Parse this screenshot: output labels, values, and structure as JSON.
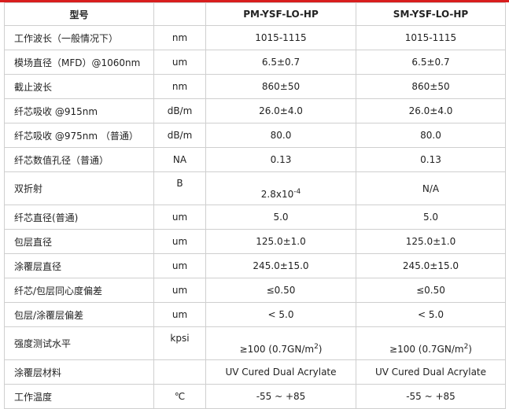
{
  "header": {
    "param": "型号",
    "unit": "",
    "model_a": "PM-YSF-LO-HP",
    "model_b": "SM-YSF-LO-HP"
  },
  "rows": [
    {
      "param": "工作波长（一般情况下）",
      "unit": "nm",
      "a": "1015-1115",
      "b": "1015-1115"
    },
    {
      "param": "模场直径（MFD）@1060nm",
      "unit": "um",
      "a": "6.5±0.7",
      "b": "6.5±0.7"
    },
    {
      "param": "截止波长",
      "unit": "nm",
      "a": "860±50",
      "b": "860±50"
    },
    {
      "param": "纤芯吸收 @915nm",
      "unit": "dB/m",
      "a": "26.0±4.0",
      "b": "26.0±4.0"
    },
    {
      "param": "纤芯吸收 @975nm （普通）",
      "unit": "dB/m",
      "a": "80.0",
      "b": "80.0"
    },
    {
      "param": "纤芯数值孔径（普通）",
      "unit": "NA",
      "a": "0.13",
      "b": "0.13"
    },
    {
      "param": "双折射",
      "unit": "B",
      "a_base": "2.8x10",
      "a_sup": "-4",
      "b": "N/A"
    },
    {
      "param": "纤芯直径(普通)",
      "unit": "um",
      "a": "5.0",
      "b": "5.0"
    },
    {
      "param": "包层直径",
      "unit": "um",
      "a": "125.0±1.0",
      "b": "125.0±1.0"
    },
    {
      "param": "涂覆层直径",
      "unit": "um",
      "a": "245.0±15.0",
      "b": "245.0±15.0"
    },
    {
      "param": "纤芯/包层同心度偏差",
      "unit": "um",
      "a": "≤0.50",
      "b": "≤0.50"
    },
    {
      "param": "包层/涂覆层偏差",
      "unit": "um",
      "a": "< 5.0",
      "b": "< 5.0"
    },
    {
      "param": "强度测试水平",
      "unit": "kpsi",
      "a_base": "≥100 (0.7GN/m",
      "a_sup": "2",
      "a_tail": ")",
      "b_base": "≥100 (0.7GN/m",
      "b_sup": "2",
      "b_tail": ")"
    },
    {
      "param": "涂覆层材料",
      "unit": "",
      "a": "UV Cured Dual Acrylate",
      "b": "UV Cured Dual Acrylate"
    },
    {
      "param": "工作温度",
      "unit": "℃",
      "a": "-55 ~ +85",
      "b": "-55 ~ +85"
    }
  ],
  "colors": {
    "accent": "#d81e1e",
    "border": "#cfcfcf"
  }
}
